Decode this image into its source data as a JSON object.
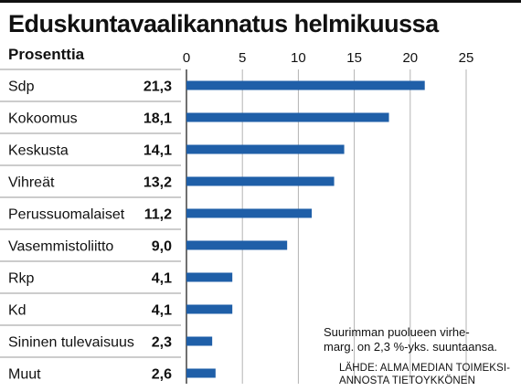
{
  "header": {
    "title": "Eduskuntavaalikannatus helmikuussa",
    "unit_label": "Prosenttia"
  },
  "note": {
    "line1": "Suurimman puolueen virhe-",
    "line2": "marg. on 2,3 %-yks. suuntaansa."
  },
  "source": {
    "line1": "LÄHDE: ALMA MEDIAN TOIMEKSI-",
    "line2": "ANNOSTA TIETOYKKÖNEN"
  },
  "colors": {
    "bar": "#1f5fa8",
    "rule": "#111111",
    "gridline": "#b3b3b3",
    "separator": "#9a9a9a"
  },
  "chart_data": {
    "type": "bar",
    "orientation": "horizontal",
    "title": "Eduskuntavaalikannatus helmikuussa",
    "unit": "Prosenttia",
    "categories": [
      "Sdp",
      "Kokoomus",
      "Keskusta",
      "Vihreät",
      "Perussuomalaiset",
      "Vasemmistoliitto",
      "Rkp",
      "Kd",
      "Sininen tulevaisuus",
      "Muut"
    ],
    "values": [
      21.3,
      18.1,
      14.1,
      13.2,
      11.2,
      9.0,
      4.1,
      4.1,
      2.3,
      2.6
    ],
    "value_labels": [
      "21,3",
      "18,1",
      "14,1",
      "13,2",
      "11,2",
      "9,0",
      "4,1",
      "4,1",
      "2,3",
      "2,6"
    ],
    "xlim": [
      0,
      25
    ],
    "xticks": [
      0,
      5,
      10,
      15,
      20,
      25
    ],
    "grid": true
  }
}
